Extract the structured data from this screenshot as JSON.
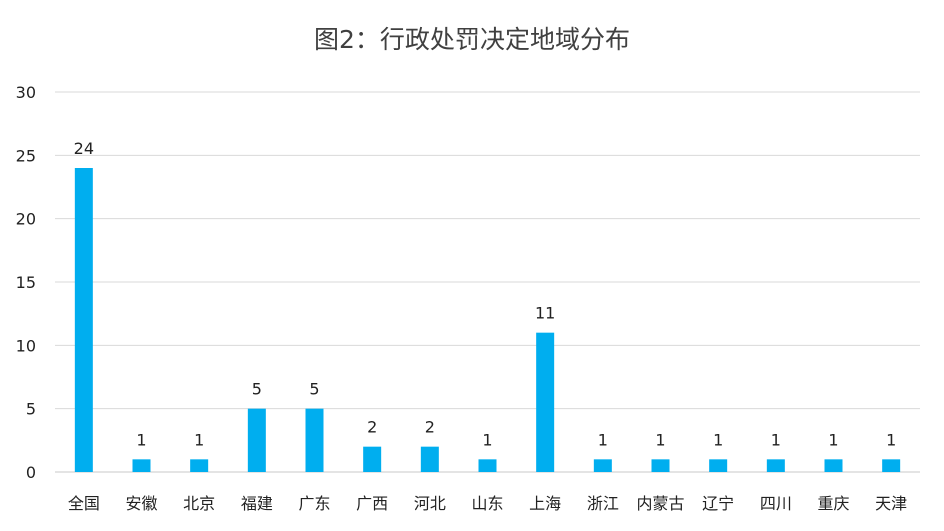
{
  "chart_data": {
    "type": "bar",
    "title": "图2：行政处罚决定地域分布",
    "xlabel": "",
    "ylabel": "",
    "ylim": [
      0,
      30
    ],
    "yticks": [
      0,
      5,
      10,
      15,
      20,
      25,
      30
    ],
    "grid": true,
    "bar_color": "#00AEEF",
    "categories": [
      "全国",
      "安徽",
      "北京",
      "福建",
      "广东",
      "广西",
      "河北",
      "山东",
      "上海",
      "浙江",
      "内蒙古",
      "辽宁",
      "四川",
      "重庆",
      "天津"
    ],
    "values": [
      24,
      1,
      1,
      5,
      5,
      2,
      2,
      1,
      11,
      1,
      1,
      1,
      1,
      1,
      1
    ]
  }
}
